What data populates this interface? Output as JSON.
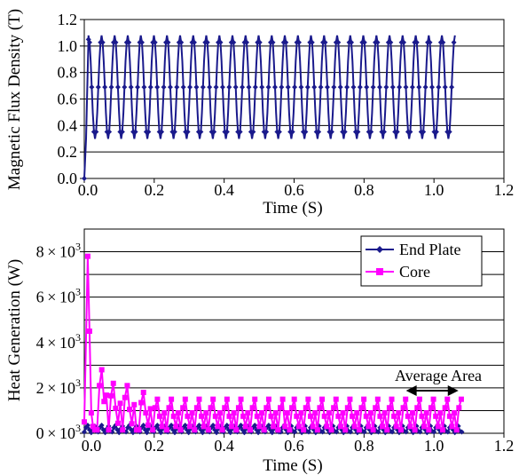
{
  "chart_data": [
    {
      "type": "line",
      "title": "",
      "xlabel": "Time (S)",
      "ylabel": "Magnetic Flux Density  (T)",
      "xlim": [
        0,
        1.2
      ],
      "ylim": [
        0,
        1.2
      ],
      "xticks": [
        "0.0",
        "0.2",
        "0.4",
        "0.6",
        "0.8",
        "1.0",
        "1.2"
      ],
      "yticks": [
        "0.0",
        "0.2",
        "0.4",
        "0.6",
        "0.8",
        "1.0",
        "1.2"
      ],
      "grid": "horizontal",
      "legend": "none",
      "series": [
        {
          "color": "#1a1a8c",
          "marker": "diamond",
          "description_values": {
            "startup": [
              [
                0.0,
                0.0
              ],
              [
                0.005,
                0.3
              ],
              [
                0.012,
                1.05
              ]
            ],
            "waveform_range": [
              0.3,
              1.08
            ],
            "cycles": 28,
            "x_end": 1.06
          }
        }
      ]
    },
    {
      "type": "line",
      "title": "",
      "xlabel": "Time (S)",
      "ylabel": "Heat Generation (W)",
      "xlim": [
        0,
        1.2
      ],
      "ylim": [
        0,
        9000
      ],
      "xticks": [
        "0.0",
        "0.2",
        "0.4",
        "0.6",
        "0.8",
        "1.0",
        "1.2"
      ],
      "yticks": [
        {
          "mant": "0",
          "exp": "3",
          "value": 0
        },
        {
          "mant": "2",
          "exp": "3",
          "value": 2000
        },
        {
          "mant": "4",
          "exp": "3",
          "value": 4000
        },
        {
          "mant": "6",
          "exp": "3",
          "value": 6000
        },
        {
          "mant": "8",
          "exp": "3",
          "value": 8000
        }
      ],
      "grid": "horizontal",
      "legend": "top-right",
      "annotation": "Average Area",
      "annotation_range": [
        0.92,
        1.07
      ],
      "series": [
        {
          "name": "End Plate",
          "color": "#1a1a8c",
          "marker": "diamond",
          "description_values": {
            "typical_peak": 350,
            "x_end": 1.08
          }
        },
        {
          "name": "Core",
          "color": "#ff00ff",
          "marker": "square",
          "description_values": {
            "initial_peak": [
              0.01,
              7800
            ],
            "early_peaks": [
              [
                0.05,
                2800
              ],
              [
                0.09,
                2200
              ],
              [
                0.13,
                2100
              ]
            ],
            "steady_peak": 1500,
            "steady_low": 150,
            "x_end": 1.08
          }
        }
      ]
    }
  ]
}
